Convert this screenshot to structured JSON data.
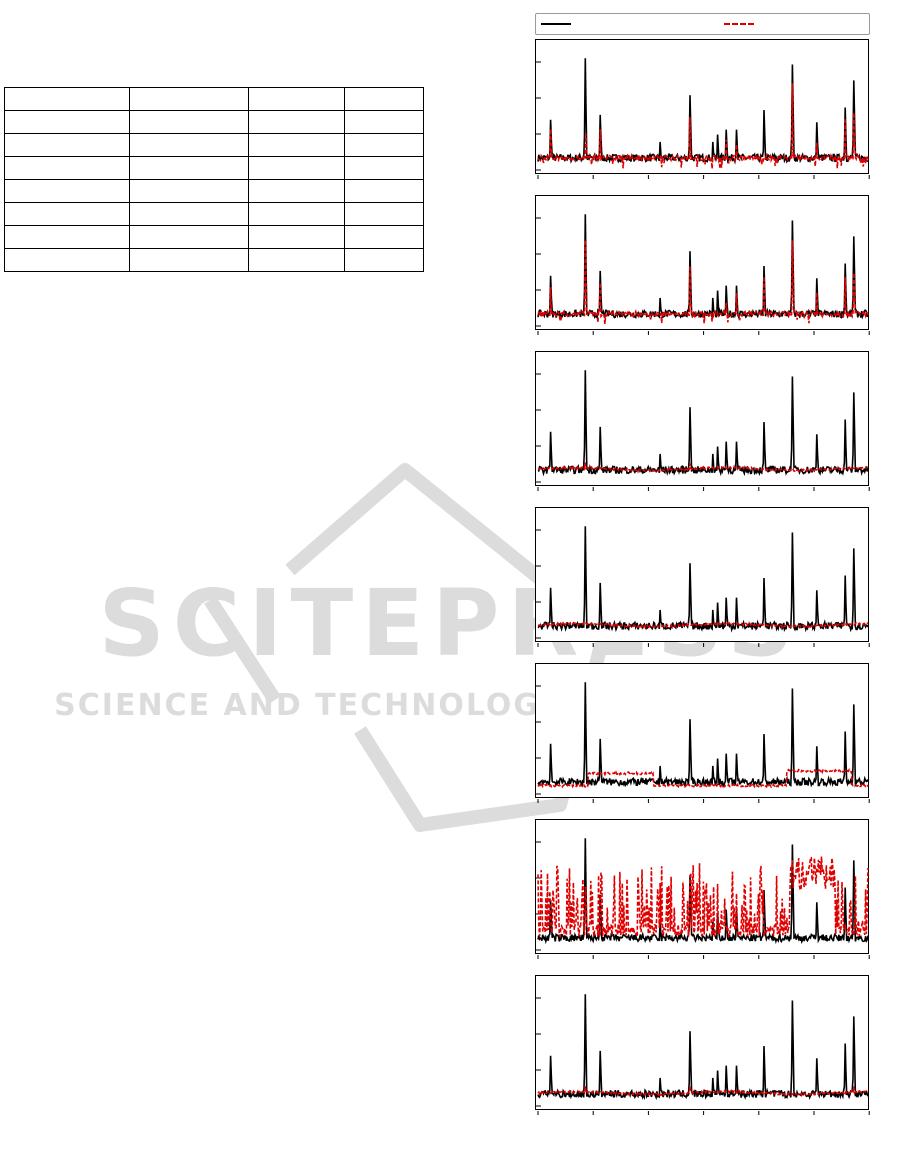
{
  "table": {
    "rows": [
      [
        "",
        "",
        "",
        ""
      ],
      [
        "",
        "",
        "",
        ""
      ],
      [
        "",
        "",
        "",
        ""
      ],
      [
        "",
        "",
        "",
        ""
      ],
      [
        "",
        "",
        "",
        ""
      ],
      [
        "",
        "",
        "",
        ""
      ],
      [
        "",
        "",
        "",
        ""
      ],
      [
        "",
        "",
        "",
        ""
      ]
    ]
  },
  "watermark": {
    "brand": "SCITEPRESS",
    "tagline": "SCIENCE AND TECHNOLOGY PUBLICATIONS",
    "color": "#dcdcdc"
  },
  "colors": {
    "measured": "#000000",
    "predicted": "#e00000"
  },
  "chart_data": [
    {
      "type": "line",
      "panel": 1,
      "predicted_style": "tracks-spikes",
      "series": [
        {
          "values": []
        },
        {
          "values": []
        }
      ]
    },
    {
      "type": "line",
      "panel": 2,
      "predicted_style": "tracks-spikes",
      "series": [
        {
          "values": []
        },
        {
          "values": []
        }
      ]
    },
    {
      "type": "line",
      "panel": 3,
      "predicted_style": "smooth-baseline",
      "series": [
        {
          "values": []
        },
        {
          "values": []
        }
      ]
    },
    {
      "type": "line",
      "panel": 4,
      "predicted_style": "smooth-baseline",
      "series": [
        {
          "values": []
        },
        {
          "values": []
        }
      ]
    },
    {
      "type": "line",
      "panel": 5,
      "predicted_style": "offset-baseline",
      "series": [
        {
          "values": []
        },
        {
          "values": []
        }
      ]
    },
    {
      "type": "line",
      "panel": 6,
      "predicted_style": "erratic-high",
      "series": [
        {
          "values": []
        },
        {
          "values": []
        }
      ]
    },
    {
      "type": "line",
      "panel": 7,
      "predicted_style": "smooth-baseline",
      "series": [
        {
          "values": []
        },
        {
          "values": []
        }
      ]
    }
  ]
}
